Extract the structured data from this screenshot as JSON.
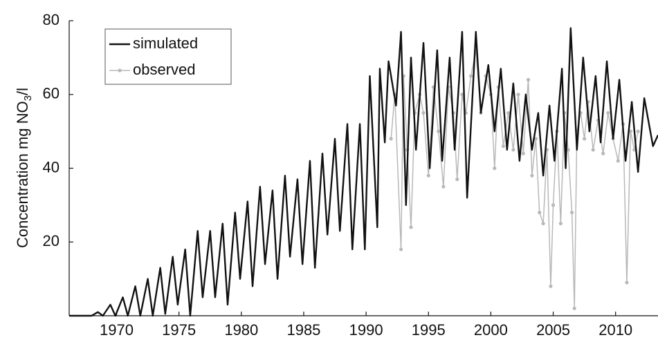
{
  "chart_data": {
    "type": "line",
    "ylabel": [
      "Concentration mg NO",
      "3",
      "/l"
    ],
    "xlim": [
      1966.2,
      2013.4
    ],
    "ylim": [
      0,
      80
    ],
    "xticks": [
      1970,
      1975,
      1980,
      1985,
      1990,
      1995,
      2000,
      2005,
      2010
    ],
    "yticks": [
      20,
      40,
      60,
      80
    ],
    "legend": "upper left",
    "series": [
      {
        "name": "simulated",
        "color": "#111111",
        "marker": false,
        "x": [
          1966.2,
          1968.0,
          1968.5,
          1968.9,
          1969.5,
          1969.9,
          1970.5,
          1970.9,
          1971.5,
          1971.9,
          1972.5,
          1972.9,
          1973.5,
          1973.9,
          1974.5,
          1974.9,
          1975.5,
          1975.9,
          1976.5,
          1976.9,
          1977.5,
          1977.9,
          1978.5,
          1978.9,
          1979.5,
          1979.9,
          1980.5,
          1980.9,
          1981.5,
          1981.9,
          1982.5,
          1982.9,
          1983.5,
          1983.9,
          1984.5,
          1984.9,
          1985.5,
          1985.9,
          1986.5,
          1986.9,
          1987.5,
          1987.9,
          1988.5,
          1988.9,
          1989.5,
          1989.9,
          1990.3,
          1990.9,
          1991.1,
          1991.5,
          1991.8,
          1992.4,
          1992.8,
          1993.2,
          1993.6,
          1994.0,
          1994.6,
          1995.1,
          1995.7,
          1996.1,
          1996.7,
          1997.1,
          1997.7,
          1998.1,
          1998.8,
          1999.2,
          1999.8,
          2000.3,
          2000.8,
          2001.3,
          2001.8,
          2002.3,
          2002.8,
          2003.3,
          2003.8,
          2004.2,
          2004.7,
          2005.1,
          2005.7,
          2006.0,
          2006.4,
          2006.9,
          2007.4,
          2007.9,
          2008.4,
          2008.8,
          2009.3,
          2009.8,
          2010.3,
          2010.8,
          2011.3,
          2011.8,
          2012.3,
          2013.0,
          2013.4
        ],
        "values": [
          0,
          0,
          1,
          0,
          3,
          0,
          5,
          0,
          8,
          0,
          10,
          0,
          13,
          0.5,
          16,
          3,
          18,
          0,
          23,
          5,
          23,
          5,
          25,
          3,
          28,
          10,
          31,
          8,
          35,
          14,
          34,
          10,
          38,
          16,
          37,
          14,
          42,
          13,
          44,
          22,
          48,
          23,
          52,
          18,
          52,
          18,
          65,
          24,
          67,
          47,
          69,
          57,
          77,
          30,
          70,
          45,
          74,
          40,
          72,
          42,
          70,
          45,
          77,
          32,
          77,
          55,
          68,
          50,
          67,
          45,
          63,
          42,
          60,
          45,
          55,
          38,
          57,
          42,
          67,
          40,
          78,
          45,
          70,
          50,
          65,
          47,
          69,
          48,
          64,
          42,
          58,
          39,
          59,
          46,
          49
        ]
      },
      {
        "name": "observed",
        "color": "#b8b8b8",
        "marker": true,
        "x": [
          1992.0,
          1992.3,
          1992.8,
          1993.0,
          1993.3,
          1993.6,
          1993.9,
          1994.3,
          1994.6,
          1995.0,
          1995.4,
          1995.8,
          1996.2,
          1996.6,
          1997.0,
          1997.3,
          1997.7,
          1998.0,
          1998.4,
          1998.8,
          1999.2,
          1999.6,
          2000.0,
          2000.3,
          2000.6,
          2001.0,
          2001.4,
          2001.8,
          2002.2,
          2002.6,
          2003.0,
          2003.3,
          2003.6,
          2003.9,
          2004.2,
          2004.5,
          2004.8,
          2005.0,
          2005.3,
          2005.6,
          2005.9,
          2006.2,
          2006.5,
          2006.7,
          2006.9,
          2007.2,
          2007.5,
          2007.8,
          2008.2,
          2008.6,
          2009.0,
          2009.4,
          2009.8,
          2010.2,
          2010.6,
          2010.9,
          2011.2,
          2011.5,
          2011.8
        ],
        "values": [
          48,
          60,
          18,
          65,
          45,
          24,
          55,
          60,
          55,
          38,
          62,
          50,
          35,
          62,
          55,
          37,
          60,
          55,
          65,
          72,
          55,
          65,
          60,
          40,
          62,
          46,
          55,
          45,
          60,
          44,
          64,
          38,
          48,
          28,
          25,
          45,
          8,
          30,
          50,
          25,
          55,
          45,
          28,
          2,
          50,
          55,
          48,
          58,
          45,
          53,
          44,
          55,
          48,
          42,
          52,
          9,
          50,
          45,
          50
        ]
      }
    ]
  }
}
